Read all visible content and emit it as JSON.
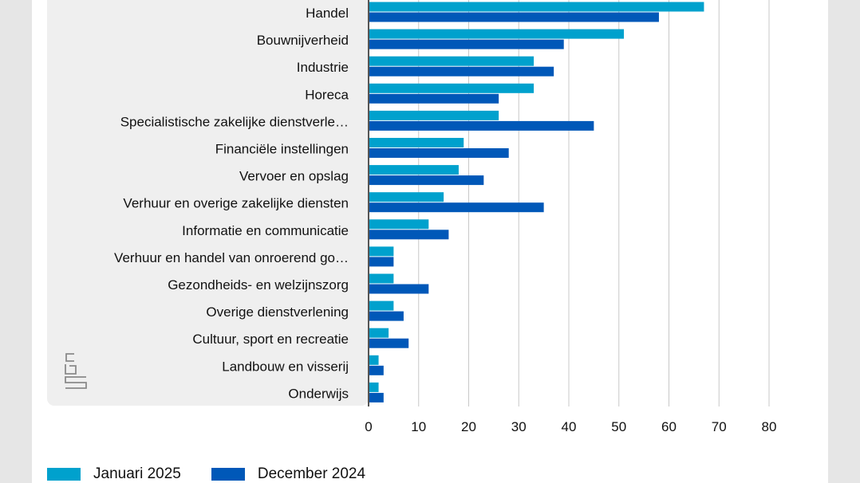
{
  "colors": {
    "series_a": "#00a1cd",
    "series_b": "#0058b8",
    "panel": "#efefef",
    "grid": "#c8c8c8",
    "axis": "#555555"
  },
  "chart_data": {
    "type": "bar",
    "orientation": "horizontal",
    "categories": [
      "Handel",
      "Bouwnijverheid",
      "Industrie",
      "Horeca",
      "Specialistische zakelijke dienstverle…",
      "Financiële instellingen",
      "Vervoer en opslag",
      "Verhuur en overige zakelijke diensten",
      "Informatie en communicatie",
      "Verhuur en handel van onroerend go…",
      "Gezondheids- en welzijnszorg",
      "Overige dienstverlening",
      "Cultuur, sport en recreatie",
      "Landbouw en visserij",
      "Onderwijs"
    ],
    "series": [
      {
        "name": "Januari 2025",
        "color": "#00a1cd",
        "values": [
          67,
          51,
          33,
          33,
          26,
          19,
          18,
          15,
          12,
          5,
          5,
          5,
          4,
          2,
          2
        ]
      },
      {
        "name": "December 2024",
        "color": "#0058b8",
        "values": [
          58,
          39,
          37,
          26,
          45,
          28,
          23,
          35,
          16,
          5,
          12,
          7,
          8,
          3,
          3
        ]
      }
    ],
    "xlim": [
      0,
      80
    ],
    "xticks": [
      0,
      10,
      20,
      30,
      40,
      50,
      60,
      70,
      80
    ],
    "grid": true,
    "legend_position": "bottom-left"
  },
  "logo": {
    "text": "cbs",
    "icon": "cbs-logo-icon"
  }
}
